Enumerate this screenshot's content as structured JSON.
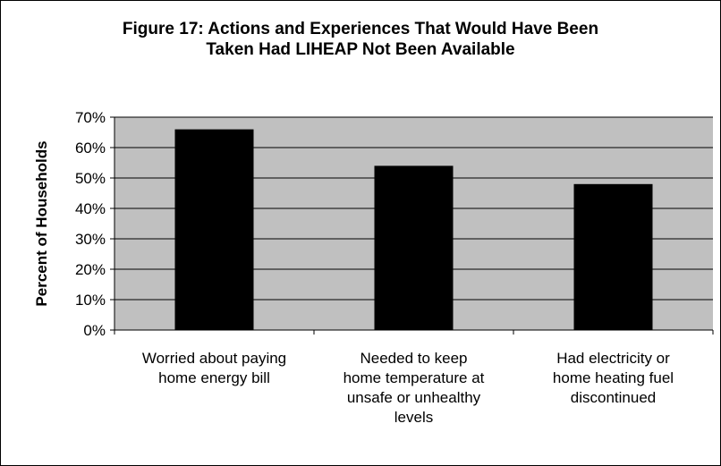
{
  "chart_data": {
    "type": "bar",
    "title_lines": [
      "Figure 17: Actions and Experiences That Would Have Been",
      "Taken Had LIHEAP Not Been Available"
    ],
    "ylabel": "Percent of Households",
    "xlabel": "",
    "categories": [
      [
        "Worried about paying",
        "home energy bill"
      ],
      [
        "Needed to keep",
        "home temperature at",
        "unsafe or unhealthy",
        "levels"
      ],
      [
        "Had electricity or",
        "home heating fuel",
        "discontinued"
      ]
    ],
    "values": [
      66,
      54,
      48
    ],
    "ylim": [
      0,
      70
    ],
    "yticks": [
      0,
      10,
      20,
      30,
      40,
      50,
      60,
      70
    ],
    "ytick_labels": [
      "0%",
      "10%",
      "20%",
      "30%",
      "40%",
      "50%",
      "60%",
      "70%"
    ],
    "grid": true,
    "legend": "none",
    "colors": {
      "plot_background": "#c0c0c0",
      "bar": "#000000",
      "gridline": "#000000"
    }
  }
}
